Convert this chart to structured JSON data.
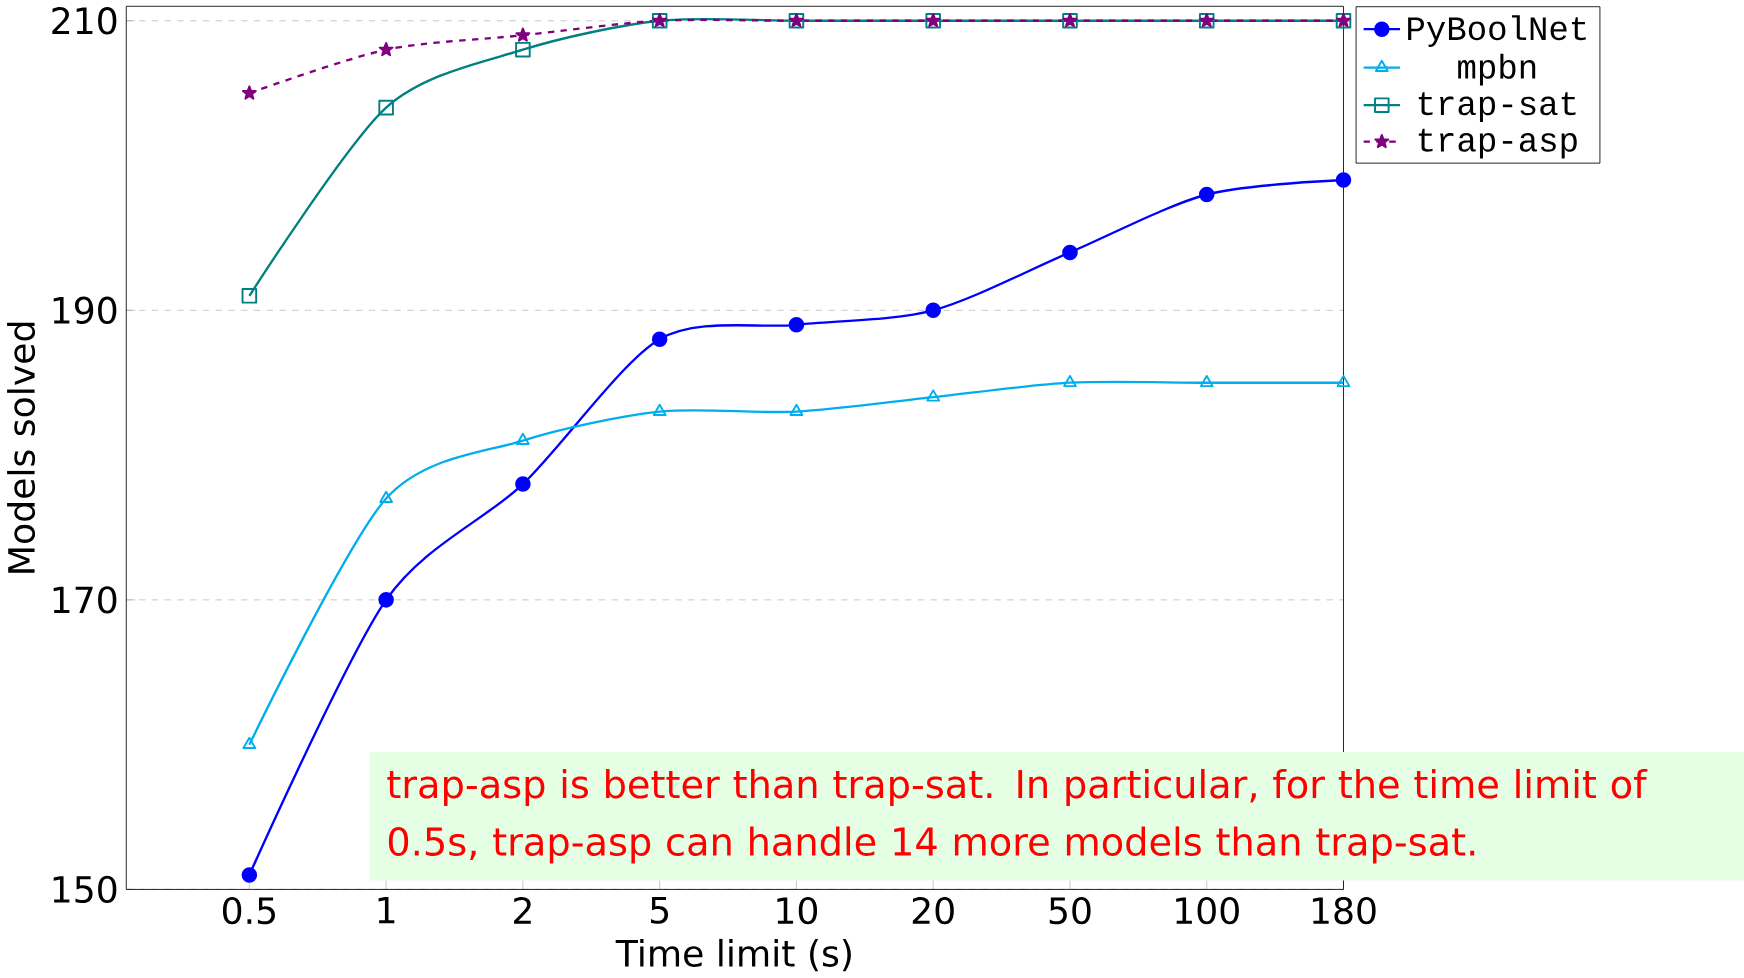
{
  "chart_data": {
    "type": "line",
    "xlabel": "Time limit (s)",
    "ylabel": "Models solved",
    "categories": [
      "0.5",
      "1",
      "2",
      "5",
      "10",
      "20",
      "50",
      "100",
      "180"
    ],
    "ylim": [
      150,
      211
    ],
    "yticks": [
      150,
      170,
      190,
      210
    ],
    "grid": "y",
    "legend": "top right",
    "series": [
      {
        "name": "PyBoolNet",
        "color": "#0000ff",
        "marker": "circle",
        "line_style": "solid",
        "values": [
          151,
          170,
          178,
          188,
          189,
          190,
          194,
          198,
          199
        ]
      },
      {
        "name": "mpbn",
        "color": "#00aeef",
        "marker": "triangle",
        "line_style": "solid",
        "values": [
          160,
          177,
          181,
          183,
          183,
          184,
          185,
          185,
          185
        ]
      },
      {
        "name": "trap-sat",
        "color": "#008080",
        "marker": "square",
        "line_style": "solid",
        "values": [
          191,
          204,
          208,
          210,
          210,
          210,
          210,
          210,
          210
        ]
      },
      {
        "name": "trap-asp",
        "color": "#800080",
        "marker": "star",
        "line_style": "dashed",
        "values": [
          205,
          208,
          209,
          210,
          210,
          210,
          210,
          210,
          210
        ]
      }
    ],
    "annotations": [
      "trap-asp is better than trap-sat. In particular, for the time limit of 0.5s, trap-asp can handle 14 more models than trap-sat."
    ]
  }
}
